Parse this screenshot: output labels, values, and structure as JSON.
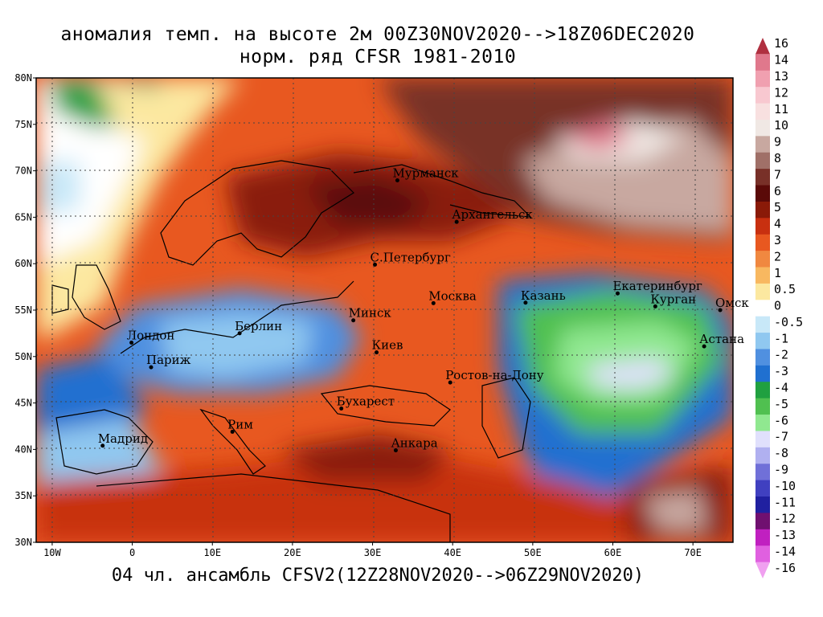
{
  "title_line1": "аномалия темп. на высоте 2м 00Z30NOV2020-->18Z06DEC2020",
  "title_line2": "норм. ряд CFSR 1981-2010",
  "footer": "04 чл. ансамбль CFSV2(12Z28NOV2020-->06Z29NOV2020)",
  "lat_labels": [
    "80N",
    "75N",
    "70N",
    "65N",
    "60N",
    "55N",
    "50N",
    "45N",
    "40N",
    "35N",
    "30N"
  ],
  "lon_labels": [
    "10W",
    "0",
    "10E",
    "20E",
    "30E",
    "40E",
    "50E",
    "60E",
    "70E"
  ],
  "cities": [
    {
      "name": "Мурманск",
      "lon": 33.1,
      "lat": 68.97
    },
    {
      "name": "Архангельск",
      "lon": 40.5,
      "lat": 64.5
    },
    {
      "name": "С.Петербург",
      "lon": 30.3,
      "lat": 59.9
    },
    {
      "name": "Москва",
      "lon": 37.6,
      "lat": 55.75
    },
    {
      "name": "Казань",
      "lon": 49.1,
      "lat": 55.8
    },
    {
      "name": "Екатеринбург",
      "lon": 60.6,
      "lat": 56.8
    },
    {
      "name": "Курган",
      "lon": 65.3,
      "lat": 55.4
    },
    {
      "name": "Омск",
      "lon": 73.4,
      "lat": 55.0
    },
    {
      "name": "Астана",
      "lon": 71.4,
      "lat": 51.1
    },
    {
      "name": "Минск",
      "lon": 27.6,
      "lat": 53.9
    },
    {
      "name": "Берлин",
      "lon": 13.4,
      "lat": 52.5
    },
    {
      "name": "Лондон",
      "lon": -0.1,
      "lat": 51.5
    },
    {
      "name": "Париж",
      "lon": 2.35,
      "lat": 48.85
    },
    {
      "name": "Киев",
      "lon": 30.5,
      "lat": 50.45
    },
    {
      "name": "Ростов-на-Дону",
      "lon": 39.7,
      "lat": 47.2
    },
    {
      "name": "Бухарест",
      "lon": 26.1,
      "lat": 44.4
    },
    {
      "name": "Рим",
      "lon": 12.5,
      "lat": 41.9
    },
    {
      "name": "Мадрид",
      "lon": -3.7,
      "lat": 40.4
    },
    {
      "name": "Анкара",
      "lon": 32.9,
      "lat": 39.9
    }
  ],
  "colorbar": {
    "labels": [
      "16",
      "14",
      "13",
      "12",
      "11",
      "10",
      "9",
      "8",
      "7",
      "6",
      "5",
      "4",
      "3",
      "2",
      "1",
      "0.5",
      "0",
      "-0.5",
      "-1",
      "-2",
      "-3",
      "-4",
      "-5",
      "-6",
      "-7",
      "-8",
      "-9",
      "-10",
      "-11",
      "-12",
      "-13",
      "-14",
      "-16"
    ],
    "colors": [
      "#b03040",
      "#e0788c",
      "#f0a0b0",
      "#f8c8d0",
      "#f8e0e0",
      "#f0e8e4",
      "#c8a8a0",
      "#a07068",
      "#783028",
      "#5a0a08",
      "#8a1a08",
      "#c83010",
      "#e85820",
      "#f08840",
      "#f8b860",
      "#fce8a0",
      "#ffffff",
      "#c8e8f8",
      "#90c8f0",
      "#5090e0",
      "#2070d0",
      "#20a040",
      "#50c050",
      "#90e890",
      "#e0e0fc",
      "#b0b0f0",
      "#7070d8",
      "#4040c0",
      "#2020a0",
      "#701070",
      "#c020c0",
      "#e060e0",
      "#f0a0f0"
    ]
  },
  "chart_data": {
    "type": "heatmap",
    "variable": "аномалия темп. на высоте 2м",
    "xlim": [
      -12,
      75
    ],
    "ylim": [
      30,
      80
    ],
    "color_levels": [
      -16,
      -14,
      -13,
      -12,
      -11,
      -10,
      -9,
      -8,
      -7,
      -6,
      -5,
      -4,
      -3,
      -2,
      -1,
      -0.5,
      0,
      0.5,
      1,
      2,
      3,
      4,
      5,
      6,
      7,
      8,
      9,
      10,
      11,
      12,
      13,
      14,
      16
    ]
  }
}
